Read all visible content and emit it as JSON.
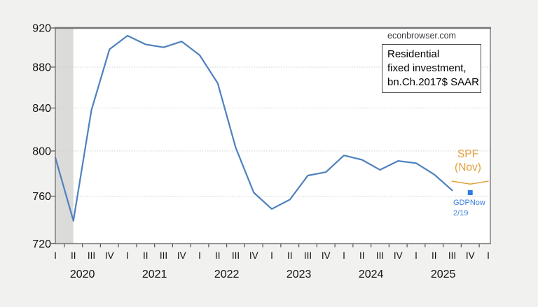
{
  "page": {
    "background": "#f1f1ef"
  },
  "watermark": {
    "text": "econbrowser.com"
  },
  "note_box": {
    "lines": [
      "Residential",
      "fixed investment,",
      "bn.Ch.2017$ SAAR"
    ]
  },
  "annotations": {
    "spf": {
      "line1": "SPF",
      "line2": "(Nov)",
      "color": "#e2a13c"
    },
    "gdpnow": {
      "line1": "GDPNow",
      "line2": "2/19",
      "color": "#3a7ede"
    }
  },
  "chart_data": {
    "type": "line",
    "title": "Residential fixed investment, bn.Ch.2017$ SAAR",
    "y_scale": "log",
    "ylim": [
      720,
      920
    ],
    "y_ticks": [
      720,
      760,
      800,
      840,
      880,
      920
    ],
    "x_quarter_labels": [
      "I",
      "II",
      "III",
      "IV",
      "I",
      "II",
      "III",
      "IV",
      "I",
      "II",
      "III",
      "IV",
      "I",
      "II",
      "III",
      "IV",
      "I",
      "II",
      "III",
      "IV",
      "I",
      "II",
      "III",
      "IV",
      "I"
    ],
    "years": [
      {
        "label": "2020",
        "mid_quarter": 1.5
      },
      {
        "label": "2021",
        "mid_quarter": 5.5
      },
      {
        "label": "2022",
        "mid_quarter": 9.5
      },
      {
        "label": "2023",
        "mid_quarter": 13.5
      },
      {
        "label": "2024",
        "mid_quarter": 17.5
      },
      {
        "label": "2025",
        "mid_quarter": 21.5
      }
    ],
    "recession_band": {
      "from_quarter": 0,
      "to_quarter": 1,
      "color": "#dbdbda"
    },
    "series": [
      {
        "name": "Residential fixed investment (actual)",
        "color": "#4f81bd",
        "width": 2.2,
        "start_quarter": 0,
        "values": [
          794,
          739,
          838,
          898,
          912,
          903,
          900,
          906,
          892,
          864,
          803,
          763,
          749,
          757,
          778,
          781,
          796,
          792,
          783,
          791,
          789,
          779,
          765
        ]
      },
      {
        "name": "SPF (Nov) forecast",
        "color": "#e2a13c",
        "width": 1.5,
        "start_quarter": 22,
        "values": [
          773,
          770.5,
          773
        ]
      }
    ],
    "point_series": [
      {
        "name": "GDPNow 2/19",
        "color": "#2e7ce0",
        "quarter": 23,
        "value": 763,
        "marker": "square",
        "size": 7
      }
    ],
    "frame_color": "#767676",
    "grid_color": "#cfcfcf",
    "plot_background": "#ffffff"
  }
}
